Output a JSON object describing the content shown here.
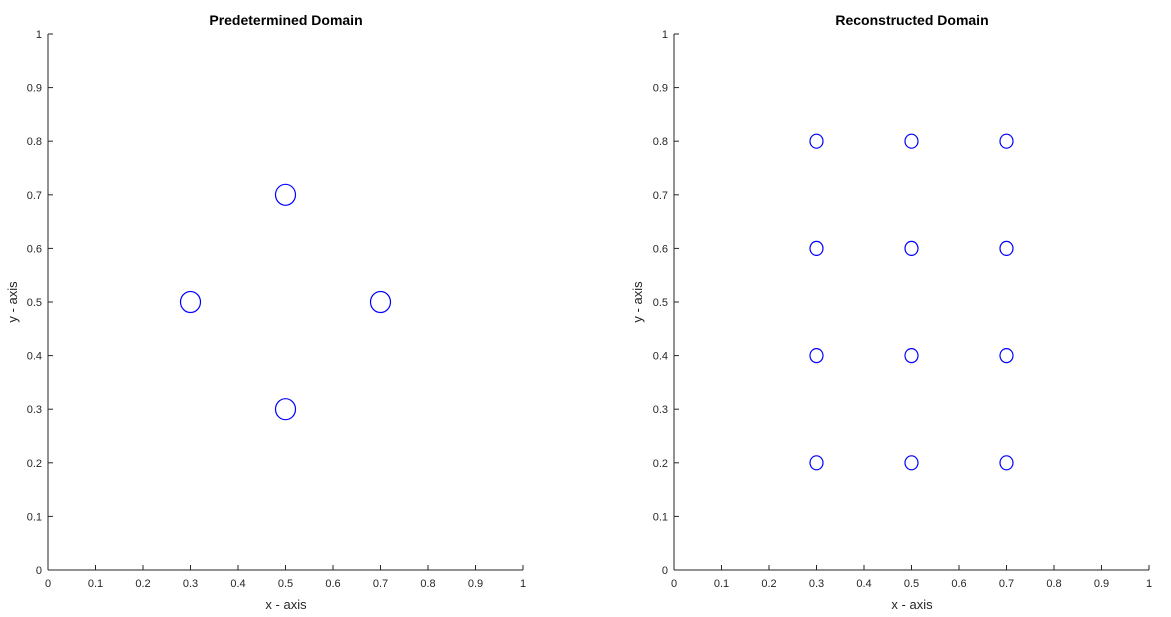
{
  "chart_data": [
    {
      "type": "scatter",
      "title": "Predetermined Domain",
      "xlabel": "x - axis",
      "ylabel": "y - axis",
      "xlim": [
        0,
        1
      ],
      "ylim": [
        0,
        1
      ],
      "xticks": [
        "0",
        "0.1",
        "0.2",
        "0.3",
        "0.4",
        "0.5",
        "0.6",
        "0.7",
        "0.8",
        "0.9",
        "1"
      ],
      "yticks": [
        "0",
        "0.1",
        "0.2",
        "0.3",
        "0.4",
        "0.5",
        "0.6",
        "0.7",
        "0.8",
        "0.9",
        "1"
      ],
      "grid": false,
      "marker": "circle",
      "color": "#0000ff",
      "points": [
        {
          "x": 0.5,
          "y": 0.7
        },
        {
          "x": 0.3,
          "y": 0.5
        },
        {
          "x": 0.7,
          "y": 0.5
        },
        {
          "x": 0.5,
          "y": 0.3
        }
      ]
    },
    {
      "type": "scatter",
      "title": "Reconstructed Domain",
      "xlabel": "x - axis",
      "ylabel": "y - axis",
      "xlim": [
        0,
        1
      ],
      "ylim": [
        0,
        1
      ],
      "xticks": [
        "0",
        "0.1",
        "0.2",
        "0.3",
        "0.4",
        "0.5",
        "0.6",
        "0.7",
        "0.8",
        "0.9",
        "1"
      ],
      "yticks": [
        "0",
        "0.1",
        "0.2",
        "0.3",
        "0.4",
        "0.5",
        "0.6",
        "0.7",
        "0.8",
        "0.9",
        "1"
      ],
      "grid": false,
      "marker": "circle",
      "color": "#0000ff",
      "points": [
        {
          "x": 0.3,
          "y": 0.8
        },
        {
          "x": 0.5,
          "y": 0.8
        },
        {
          "x": 0.7,
          "y": 0.8
        },
        {
          "x": 0.3,
          "y": 0.6
        },
        {
          "x": 0.5,
          "y": 0.6
        },
        {
          "x": 0.7,
          "y": 0.6
        },
        {
          "x": 0.3,
          "y": 0.4
        },
        {
          "x": 0.5,
          "y": 0.4
        },
        {
          "x": 0.7,
          "y": 0.4
        },
        {
          "x": 0.3,
          "y": 0.2
        },
        {
          "x": 0.5,
          "y": 0.2
        },
        {
          "x": 0.7,
          "y": 0.2
        }
      ]
    }
  ]
}
